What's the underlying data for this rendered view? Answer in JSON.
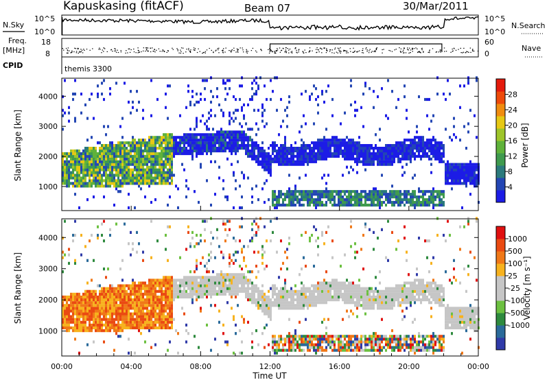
{
  "header": {
    "station": "Kapuskasing (fitACF)",
    "beam": "Beam 07",
    "date": "30/Mar/2011"
  },
  "left_labels": {
    "nsky": "N.Sky",
    "freq_line1": "Freq.",
    "freq_line2": "[MHz]",
    "cpid": "CPID"
  },
  "right_labels": {
    "nsearch": "N.Search",
    "nave": "Nave"
  },
  "cpid_name": "themis 3300",
  "chart_data": [
    {
      "type": "line",
      "name": "noise",
      "y_tick_labels": [
        "10^5",
        "10^0"
      ],
      "y_tick_labels_right": [
        "10^5",
        "10^0"
      ]
    },
    {
      "type": "scatter",
      "name": "freq-nave",
      "y_tick_labels": [
        "18",
        "8"
      ],
      "y_tick_labels_right": [
        "60",
        "0"
      ]
    },
    {
      "type": "heatmap",
      "name": "power",
      "ylabel": "Slant Range [km]",
      "ylim": [
        200,
        4600
      ],
      "y_ticks": [
        1000,
        2000,
        3000,
        4000
      ],
      "colorbar": {
        "label": "Power [dB]",
        "ticks": [
          4,
          8,
          12,
          16,
          20,
          24,
          28
        ],
        "range": [
          0,
          32
        ],
        "colors": [
          "#1c1ce6",
          "#2346b4",
          "#2b7a7c",
          "#3f9a4e",
          "#5fb23a",
          "#9ec52a",
          "#e6c814",
          "#f08c0f",
          "#ee4a0a",
          "#e41a0c"
        ]
      }
    },
    {
      "type": "heatmap",
      "name": "velocity",
      "ylabel": "Slant Range [km]",
      "ylim": [
        200,
        4600
      ],
      "y_ticks": [
        1000,
        2000,
        3000,
        4000
      ],
      "colorbar": {
        "label": "Velocity  [m s⁻¹]",
        "ticks": [
          "1000",
          "500",
          "100",
          "25",
          "-25",
          "-100",
          "-500",
          "-1000"
        ],
        "colors": [
          "#2f3aa8",
          "#2a6a9a",
          "#2e8a3e",
          "#6cc040",
          "#c6c6c6",
          "#c6c6c6",
          "#f7b21e",
          "#f07818",
          "#ea4a12",
          "#e01010"
        ]
      },
      "x_tick_labels": [
        "00:00",
        "04:00",
        "08:00",
        "12:00",
        "16:00",
        "20:00",
        "00:00"
      ],
      "xlabel": "Time UT",
      "x_hours": [
        0,
        4,
        8,
        12,
        16,
        20,
        24
      ]
    }
  ]
}
